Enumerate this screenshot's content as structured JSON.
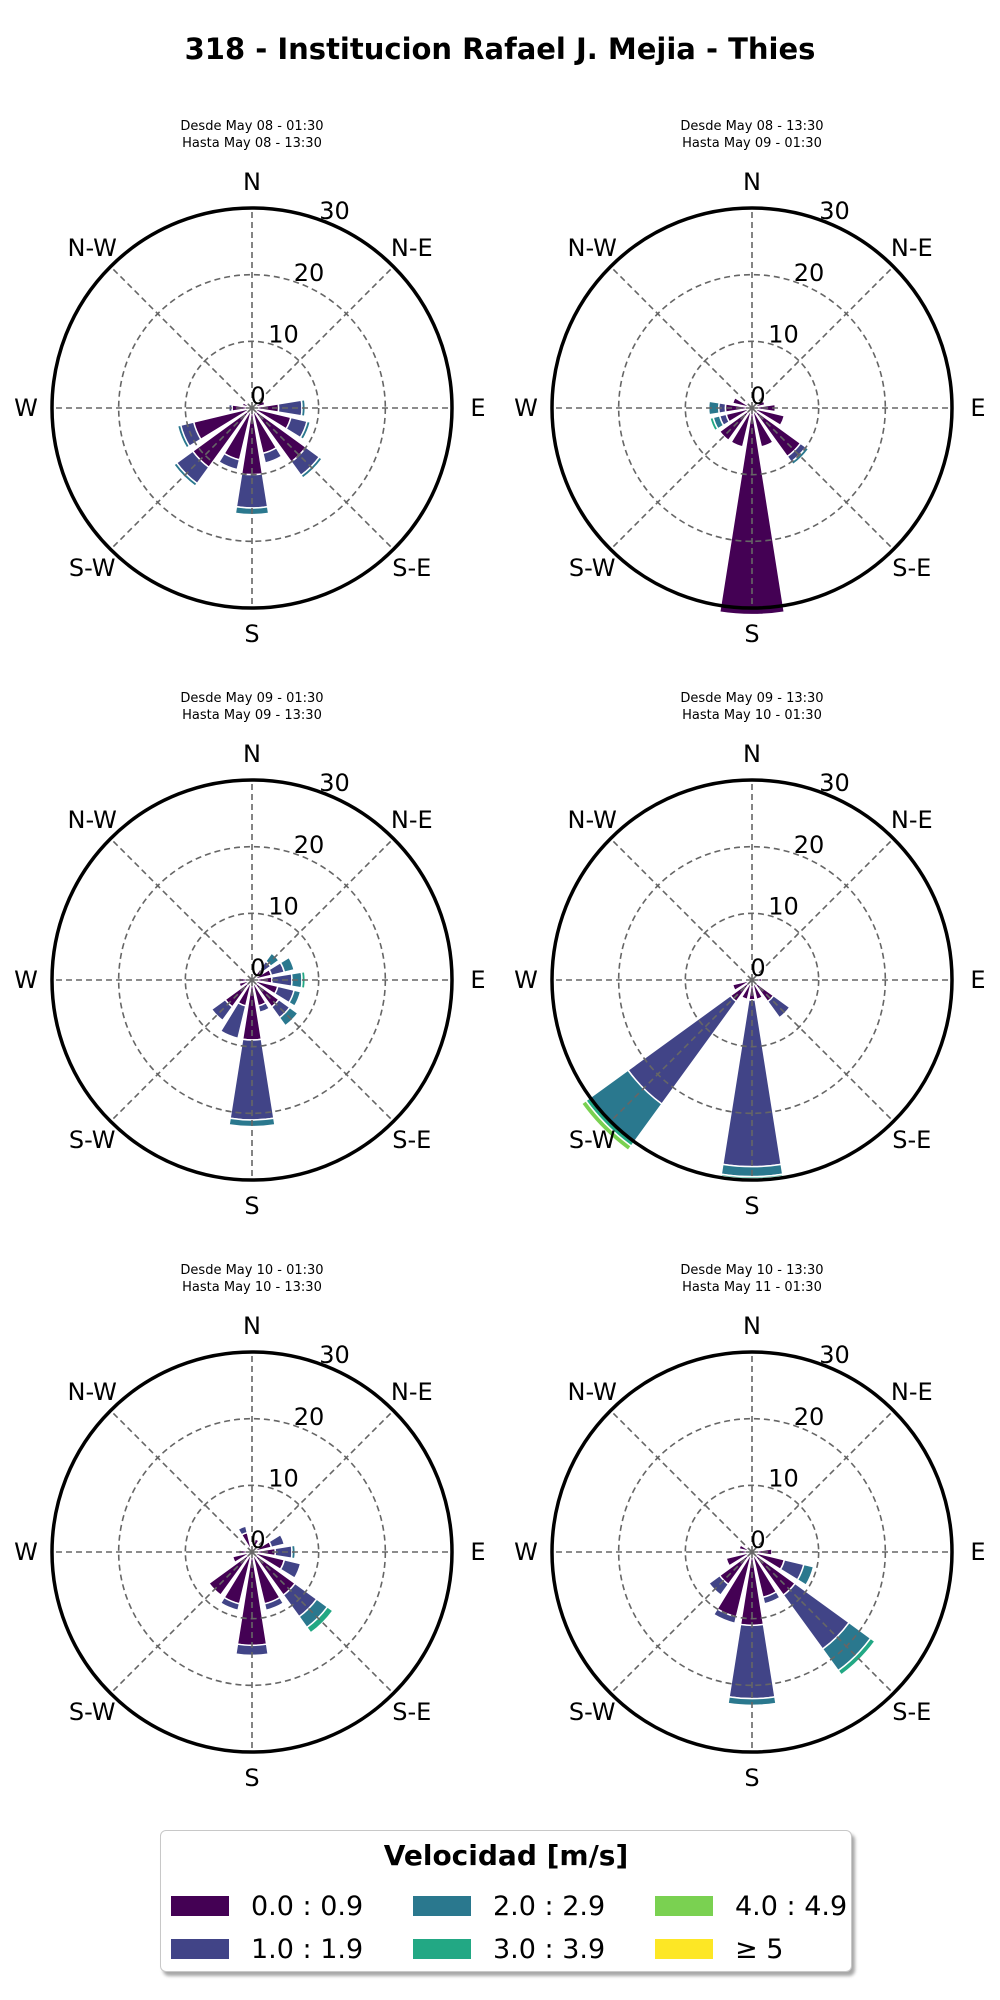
{
  "title": "318 - Institucion Rafael J. Mejia - Thies",
  "legend": {
    "title": "Velocidad [m/s]",
    "items": [
      {
        "label": "0.0 : 0.9",
        "color": "#440154"
      },
      {
        "label": "1.0 : 1.9",
        "color": "#414487"
      },
      {
        "label": "2.0 : 2.9",
        "color": "#2a788e"
      },
      {
        "label": "3.0 : 3.9",
        "color": "#22a884"
      },
      {
        "label": "4.0 : 4.9",
        "color": "#7ad151"
      },
      {
        "label": "≥ 5",
        "color": "#fde725"
      }
    ]
  },
  "chart_data": [
    {
      "type": "windrose",
      "subtitle_line1": "Desde May 08 - 01:30",
      "subtitle_line2": "Hasta May 08 - 13:30",
      "directions": [
        "N",
        "N-E",
        "E",
        "S-E",
        "S",
        "S-W",
        "W",
        "N-W"
      ],
      "radial_ticks": [
        "0",
        "10",
        "20",
        "30"
      ],
      "rlim": [
        0,
        30
      ],
      "bars": [
        {
          "angle": 90,
          "stacks": [
            4,
            3.5,
            0.5
          ]
        },
        {
          "angle": 112.5,
          "stacks": [
            6,
            2.5,
            0.5
          ]
        },
        {
          "angle": 135,
          "stacks": [
            10,
            2.5,
            0.5
          ]
        },
        {
          "angle": 157.5,
          "stacks": [
            7,
            1.5
          ]
        },
        {
          "angle": 180,
          "stacks": [
            10,
            5,
            1
          ]
        },
        {
          "angle": 202.5,
          "stacks": [
            8,
            1.5
          ]
        },
        {
          "angle": 225,
          "stacks": [
            11,
            3,
            0.5
          ]
        },
        {
          "angle": 247.5,
          "stacks": [
            9,
            2,
            0.5
          ]
        },
        {
          "angle": 270,
          "stacks": [
            3,
            0.5
          ]
        },
        {
          "angle": 292.5,
          "stacks": [
            1.5
          ]
        },
        {
          "angle": 315,
          "stacks": [
            1
          ]
        },
        {
          "angle": 67.5,
          "stacks": [
            2
          ]
        }
      ]
    },
    {
      "type": "windrose",
      "subtitle_line1": "Desde May 08 - 13:30",
      "subtitle_line2": "Hasta May 09 - 01:30",
      "directions": [
        "N",
        "N-E",
        "E",
        "S-E",
        "S",
        "S-W",
        "W",
        "N-W"
      ],
      "radial_ticks": [
        "0",
        "10",
        "20",
        "30"
      ],
      "rlim": [
        0,
        30
      ],
      "bars": [
        {
          "angle": 90,
          "stacks": [
            3.5
          ]
        },
        {
          "angle": 112.5,
          "stacks": [
            5
          ]
        },
        {
          "angle": 135,
          "stacks": [
            9,
            1,
            0.5
          ]
        },
        {
          "angle": 157.5,
          "stacks": [
            6
          ]
        },
        {
          "angle": 180,
          "stacks": [
            31
          ]
        },
        {
          "angle": 202.5,
          "stacks": [
            6
          ]
        },
        {
          "angle": 225,
          "stacks": [
            6
          ]
        },
        {
          "angle": 247.5,
          "stacks": [
            4,
            1,
            1,
            0.5
          ]
        },
        {
          "angle": 270,
          "stacks": [
            4,
            1,
            1.5
          ]
        },
        {
          "angle": 292.5,
          "stacks": [
            3
          ]
        },
        {
          "angle": 67.5,
          "stacks": [
            2
          ]
        }
      ]
    },
    {
      "type": "windrose",
      "subtitle_line1": "Desde May 09 - 01:30",
      "subtitle_line2": "Hasta May 09 - 13:30",
      "directions": [
        "N",
        "N-E",
        "E",
        "S-E",
        "S",
        "S-W",
        "W",
        "N-W"
      ],
      "radial_ticks": [
        "0",
        "10",
        "20",
        "30"
      ],
      "rlim": [
        0,
        30
      ],
      "bars": [
        {
          "angle": 45,
          "stacks": [
            2,
            1.5,
            1.5
          ]
        },
        {
          "angle": 67.5,
          "stacks": [
            3,
            2,
            1.5
          ]
        },
        {
          "angle": 90,
          "stacks": [
            3,
            3,
            1.5,
            0.5
          ]
        },
        {
          "angle": 112.5,
          "stacks": [
            4,
            2.5,
            1
          ]
        },
        {
          "angle": 135,
          "stacks": [
            5,
            2,
            1.5
          ]
        },
        {
          "angle": 157.5,
          "stacks": [
            4,
            1
          ]
        },
        {
          "angle": 180,
          "stacks": [
            9,
            12,
            1
          ]
        },
        {
          "angle": 202.5,
          "stacks": [
            4,
            5
          ]
        },
        {
          "angle": 225,
          "stacks": [
            5,
            2.5
          ]
        },
        {
          "angle": 247.5,
          "stacks": [
            2
          ]
        },
        {
          "angle": 270,
          "stacks": [
            2
          ]
        },
        {
          "angle": 22.5,
          "stacks": [
            1
          ]
        }
      ]
    },
    {
      "type": "windrose",
      "subtitle_line1": "Desde May 09 - 13:30",
      "subtitle_line2": "Hasta May 10 - 01:30",
      "directions": [
        "N",
        "N-E",
        "E",
        "S-E",
        "S",
        "S-W",
        "W",
        "N-W"
      ],
      "radial_ticks": [
        "0",
        "10",
        "20",
        "30"
      ],
      "rlim": [
        0,
        30
      ],
      "bars": [
        {
          "angle": 90,
          "stacks": [
            1.5
          ]
        },
        {
          "angle": 135,
          "stacks": [
            4,
            3
          ]
        },
        {
          "angle": 157.5,
          "stacks": [
            3
          ]
        },
        {
          "angle": 180,
          "stacks": [
            3,
            25,
            1.5,
            0.3
          ]
        },
        {
          "angle": 202.5,
          "stacks": [
            3
          ]
        },
        {
          "angle": 225,
          "stacks": [
            4,
            19,
            7,
            0.8,
            0.8
          ]
        },
        {
          "angle": 247.5,
          "stacks": [
            3
          ]
        }
      ]
    },
    {
      "type": "windrose",
      "subtitle_line1": "Desde May 10 - 01:30",
      "subtitle_line2": "Hasta May 10 - 13:30",
      "directions": [
        "N",
        "N-E",
        "E",
        "S-E",
        "S",
        "S-W",
        "W",
        "N-W"
      ],
      "radial_ticks": [
        "0",
        "10",
        "20",
        "30"
      ],
      "rlim": [
        0,
        30
      ],
      "bars": [
        {
          "angle": 67.5,
          "stacks": [
            3,
            2
          ]
        },
        {
          "angle": 90,
          "stacks": [
            3.5,
            2.5,
            0.5
          ]
        },
        {
          "angle": 112.5,
          "stacks": [
            5,
            2.5
          ]
        },
        {
          "angle": 135,
          "stacks": [
            8,
            4,
            2,
            1
          ]
        },
        {
          "angle": 157.5,
          "stacks": [
            8,
            1
          ]
        },
        {
          "angle": 180,
          "stacks": [
            14,
            1.5
          ]
        },
        {
          "angle": 202.5,
          "stacks": [
            8,
            1
          ]
        },
        {
          "angle": 225,
          "stacks": [
            8
          ]
        },
        {
          "angle": 247.5,
          "stacks": [
            3
          ]
        },
        {
          "angle": 270,
          "stacks": [
            2
          ]
        },
        {
          "angle": 337.5,
          "stacks": [
            3,
            1
          ]
        },
        {
          "angle": 22.5,
          "stacks": [
            2
          ]
        }
      ]
    },
    {
      "type": "windrose",
      "subtitle_line1": "Desde May 10 - 13:30",
      "subtitle_line2": "Hasta May 11 - 01:30",
      "directions": [
        "N",
        "N-E",
        "E",
        "S-E",
        "S",
        "S-W",
        "W",
        "N-W"
      ],
      "radial_ticks": [
        "0",
        "10",
        "20",
        "30"
      ],
      "rlim": [
        0,
        30
      ],
      "bars": [
        {
          "angle": 112.5,
          "stacks": [
            5,
            3,
            1.5
          ]
        },
        {
          "angle": 135,
          "stacks": [
            8,
            10,
            4,
            0.8
          ]
        },
        {
          "angle": 157.5,
          "stacks": [
            7,
            1
          ]
        },
        {
          "angle": 180,
          "stacks": [
            11,
            11,
            1
          ]
        },
        {
          "angle": 202.5,
          "stacks": [
            10,
            1
          ]
        },
        {
          "angle": 225,
          "stacks": [
            6,
            2
          ]
        },
        {
          "angle": 247.5,
          "stacks": [
            4
          ]
        },
        {
          "angle": 270,
          "stacks": [
            2
          ]
        },
        {
          "angle": 292.5,
          "stacks": [
            2
          ]
        },
        {
          "angle": 90,
          "stacks": [
            3
          ]
        }
      ]
    }
  ]
}
